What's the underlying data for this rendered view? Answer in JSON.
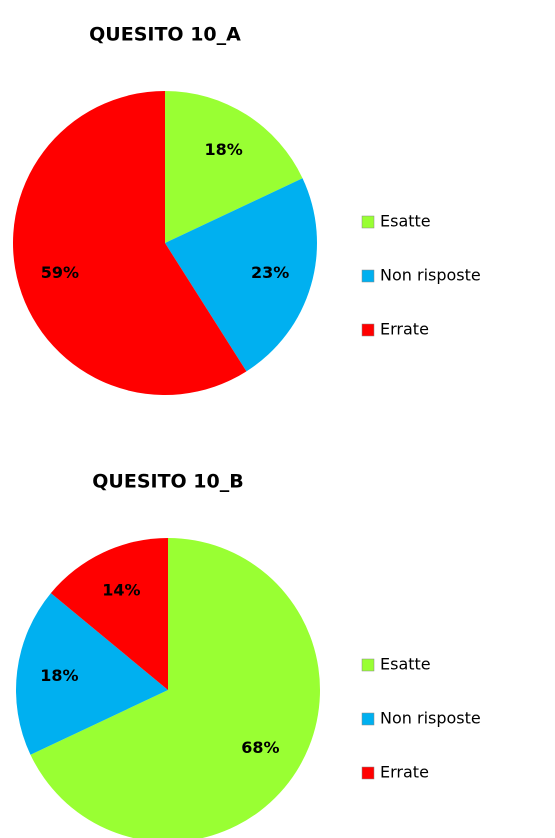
{
  "chart_data": [
    {
      "type": "pie",
      "title": "QUESITO 10_A",
      "categories": [
        "Esatte",
        "Non risposte",
        "Errate"
      ],
      "values": [
        18,
        23,
        59
      ],
      "value_labels": [
        "18%",
        "23%",
        "59%"
      ],
      "colors": [
        "#99ff33",
        "#00b0f0",
        "#ff0000"
      ],
      "legend": "right"
    },
    {
      "type": "pie",
      "title": "QUESITO 10_B",
      "categories": [
        "Esatte",
        "Non risposte",
        "Errate"
      ],
      "values": [
        68,
        18,
        14
      ],
      "value_labels": [
        "68%",
        "18%",
        "14%"
      ],
      "colors": [
        "#99ff33",
        "#00b0f0",
        "#ff0000"
      ],
      "legend": "right"
    }
  ]
}
